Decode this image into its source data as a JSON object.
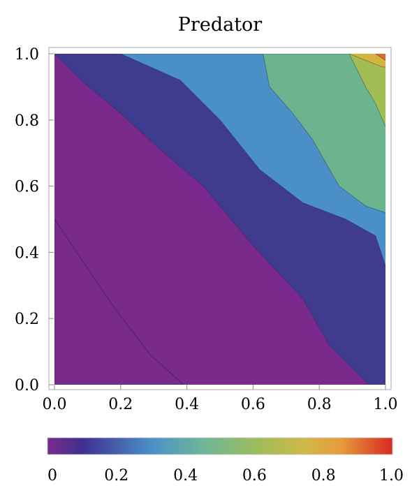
{
  "chart_data": {
    "type": "heatmap",
    "title": "Predator",
    "xlabel": "",
    "ylabel": "",
    "xlim": [
      0.0,
      1.0
    ],
    "ylim": [
      0.0,
      1.0
    ],
    "x_ticks": [
      "0.0",
      "0.2",
      "0.4",
      "0.6",
      "0.8",
      "1.0"
    ],
    "y_ticks": [
      "0.0",
      "0.2",
      "0.4",
      "0.6",
      "0.8",
      "1.0"
    ],
    "grid": false,
    "colorbar": {
      "range": [
        0.0,
        1.0
      ],
      "ticks": [
        "0",
        "0.2",
        "0.4",
        "0.6",
        "0.8",
        "1.0"
      ],
      "stops": [
        {
          "value": 0.0,
          "color": "#7a2a8c"
        },
        {
          "value": 0.1,
          "color": "#3f2f8f"
        },
        {
          "value": 0.3,
          "color": "#4a90c8"
        },
        {
          "value": 0.45,
          "color": "#6eb69a"
        },
        {
          "value": 0.6,
          "color": "#9bbd5e"
        },
        {
          "value": 0.75,
          "color": "#d2b845"
        },
        {
          "value": 0.85,
          "color": "#e59c3a"
        },
        {
          "value": 1.0,
          "color": "#d62a22"
        }
      ]
    },
    "contour_levels": [
      {
        "name": "0.0-0.1",
        "color": "#7a2a8c",
        "boundary": [
          [
            0.0,
            0.5
          ],
          [
            0.08,
            0.38
          ],
          [
            0.19,
            0.22
          ],
          [
            0.29,
            0.09
          ],
          [
            0.39,
            0.0
          ]
        ]
      },
      {
        "name": "0.1-0.3",
        "color": "#3f3c8f",
        "boundary": [
          [
            0.0,
            1.0
          ],
          [
            0.08,
            0.92
          ],
          [
            0.2,
            0.82
          ],
          [
            0.32,
            0.71
          ],
          [
            0.45,
            0.6
          ],
          [
            0.6,
            0.42
          ],
          [
            0.75,
            0.26
          ],
          [
            0.83,
            0.12
          ],
          [
            0.9,
            0.05
          ],
          [
            0.95,
            0.0
          ]
        ]
      },
      {
        "name": "0.3-0.45",
        "color": "#4a8fc6",
        "boundary": [
          [
            0.0,
            1.0
          ],
          [
            0.2,
            1.0
          ],
          [
            0.38,
            0.92
          ],
          [
            0.5,
            0.8
          ],
          [
            0.62,
            0.65
          ],
          [
            0.75,
            0.55
          ],
          [
            0.88,
            0.5
          ],
          [
            0.97,
            0.45
          ],
          [
            1.0,
            0.36
          ]
        ]
      },
      {
        "name": "0.45-0.6",
        "color": "#6cb48e",
        "boundary": [
          [
            0.2,
            1.0
          ],
          [
            0.63,
            1.0
          ],
          [
            0.65,
            0.9
          ],
          [
            0.72,
            0.82
          ],
          [
            0.78,
            0.74
          ],
          [
            0.86,
            0.6
          ],
          [
            0.94,
            0.54
          ],
          [
            1.0,
            0.52
          ]
        ]
      },
      {
        "name": "0.6-0.75",
        "color": "#a3bd55",
        "boundary": [
          [
            0.63,
            1.0
          ],
          [
            0.89,
            1.0
          ],
          [
            0.94,
            0.9
          ],
          [
            0.97,
            0.85
          ],
          [
            1.0,
            0.78
          ]
        ]
      },
      {
        "name": "0.75-0.85",
        "color": "#d4b43e",
        "boundary": [
          [
            0.89,
            1.0
          ],
          [
            0.99,
            0.96
          ]
        ]
      },
      {
        "name": "0.85-1.0",
        "color": "#e06a2a",
        "boundary": [
          [
            0.97,
            1.0
          ],
          [
            1.0,
            0.98
          ]
        ]
      }
    ]
  }
}
